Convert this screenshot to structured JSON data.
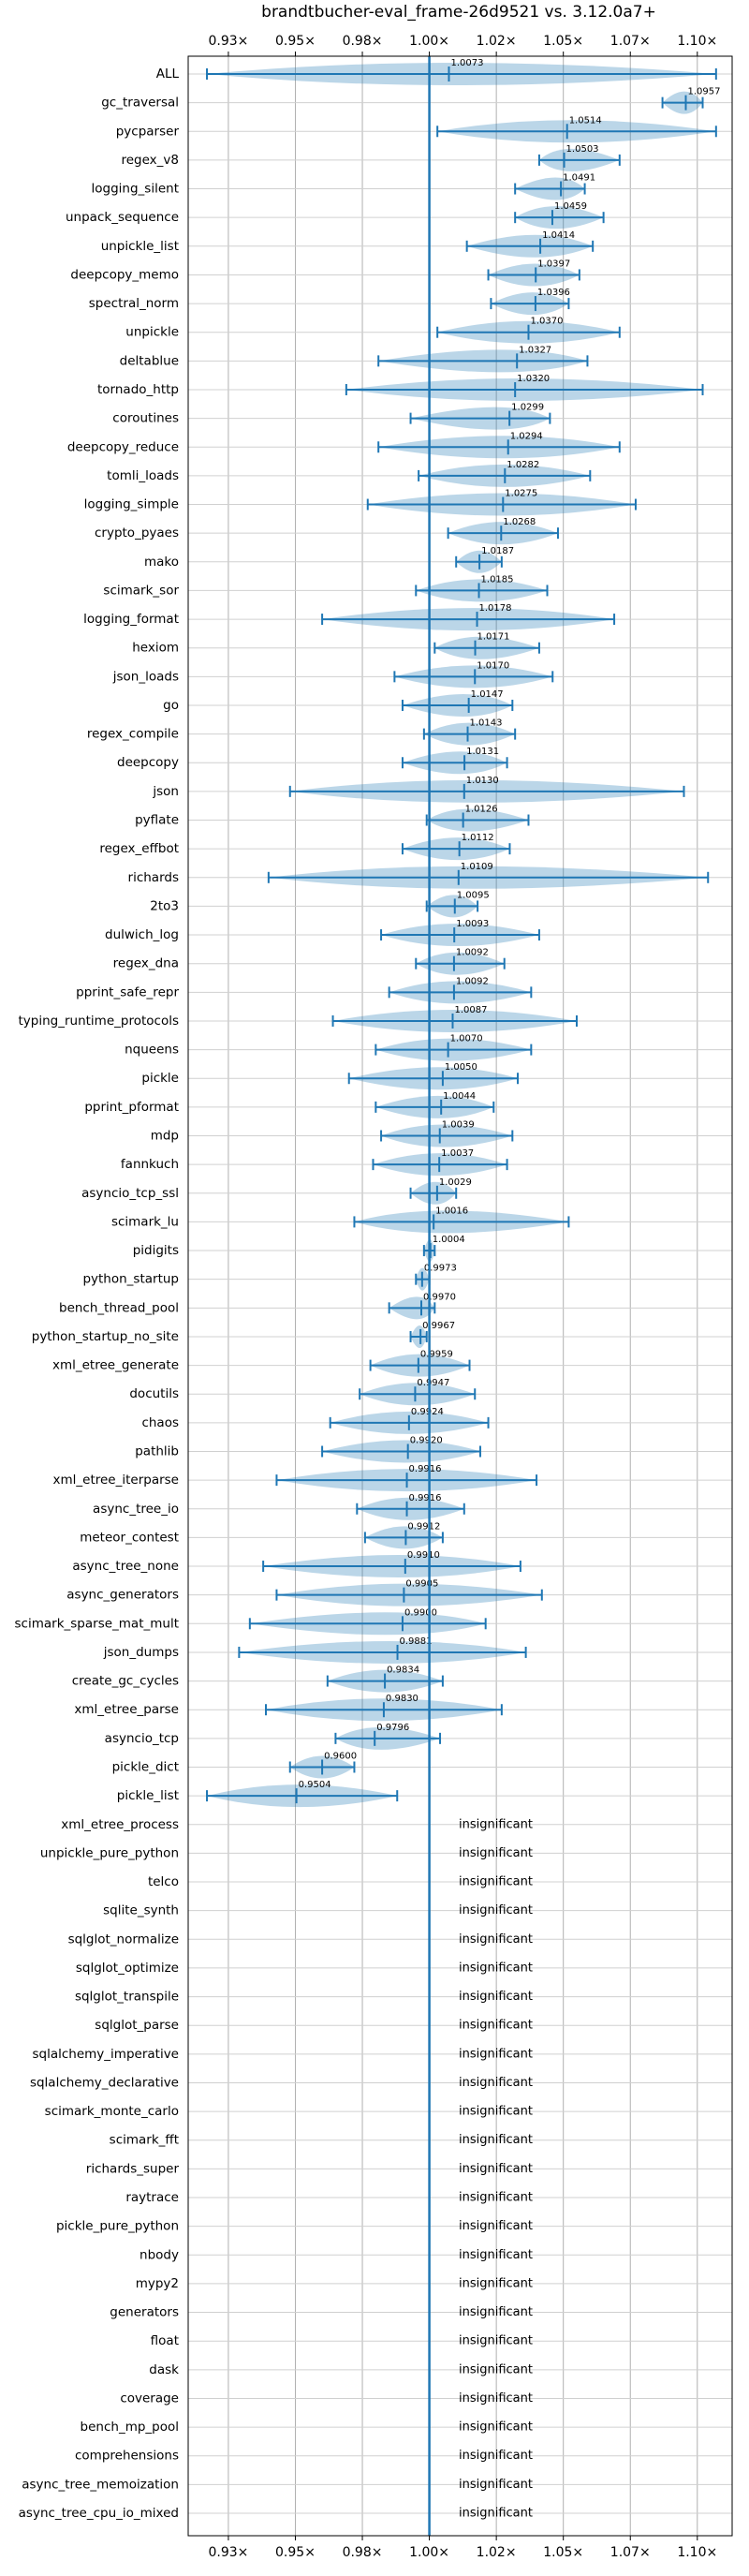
{
  "chart_data": {
    "type": "violin",
    "title": "brandtbucher-eval_frame-26d9521 vs. 3.12.0a7+",
    "xlim": [
      0.91,
      1.113
    ],
    "xticks": [
      {
        "value": 0.925,
        "label": "0.93×"
      },
      {
        "value": 0.95,
        "label": "0.95×"
      },
      {
        "value": 0.975,
        "label": "0.98×"
      },
      {
        "value": 1.0,
        "label": "1.00×"
      },
      {
        "value": 1.025,
        "label": "1.02×"
      },
      {
        "value": 1.05,
        "label": "1.05×"
      },
      {
        "value": 1.075,
        "label": "1.07×"
      },
      {
        "value": 1.1,
        "label": "1.10×"
      }
    ],
    "reference_line": 1,
    "grid": true,
    "color": "#1f77b4",
    "categories": [
      "ALL",
      "gc_traversal",
      "pycparser",
      "regex_v8",
      "logging_silent",
      "unpack_sequence",
      "unpickle_list",
      "deepcopy_memo",
      "spectral_norm",
      "unpickle",
      "deltablue",
      "tornado_http",
      "coroutines",
      "deepcopy_reduce",
      "tomli_loads",
      "logging_simple",
      "crypto_pyaes",
      "mako",
      "scimark_sor",
      "logging_format",
      "hexiom",
      "json_loads",
      "go",
      "regex_compile",
      "deepcopy",
      "json",
      "pyflate",
      "regex_effbot",
      "richards",
      "2to3",
      "dulwich_log",
      "regex_dna",
      "pprint_safe_repr",
      "typing_runtime_protocols",
      "nqueens",
      "pickle",
      "pprint_pformat",
      "mdp",
      "fannkuch",
      "asyncio_tcp_ssl",
      "scimark_lu",
      "pidigits",
      "python_startup",
      "bench_thread_pool",
      "python_startup_no_site",
      "xml_etree_generate",
      "docutils",
      "chaos",
      "pathlib",
      "xml_etree_iterparse",
      "async_tree_io",
      "meteor_contest",
      "async_tree_none",
      "async_generators",
      "scimark_sparse_mat_mult",
      "json_dumps",
      "create_gc_cycles",
      "xml_etree_parse",
      "asyncio_tcp",
      "pickle_dict",
      "pickle_list",
      "xml_etree_process",
      "unpickle_pure_python",
      "telco",
      "sqlite_synth",
      "sqlglot_normalize",
      "sqlglot_optimize",
      "sqlglot_transpile",
      "sqlglot_parse",
      "sqlalchemy_imperative",
      "sqlalchemy_declarative",
      "scimark_monte_carlo",
      "scimark_fft",
      "richards_super",
      "raytrace",
      "pickle_pure_python",
      "nbody",
      "mypy2",
      "generators",
      "float",
      "dask",
      "coverage",
      "bench_mp_pool",
      "comprehensions",
      "async_tree_memoization",
      "async_tree_cpu_io_mixed"
    ],
    "values": [
      1.0073,
      1.0957,
      1.0514,
      1.0503,
      1.0491,
      1.0459,
      1.0414,
      1.0397,
      1.0396,
      1.037,
      1.0327,
      1.032,
      1.0299,
      1.0294,
      1.0282,
      1.0275,
      1.0268,
      1.0187,
      1.0185,
      1.0178,
      1.0171,
      1.017,
      1.0147,
      1.0143,
      1.0131,
      1.013,
      1.0126,
      1.0112,
      1.0109,
      1.0095,
      1.0093,
      1.0092,
      1.0092,
      1.0087,
      1.007,
      1.005,
      1.0044,
      1.0039,
      1.0037,
      1.0029,
      1.0016,
      1.0004,
      0.9973,
      0.997,
      0.9967,
      0.9959,
      0.9947,
      0.9924,
      0.992,
      0.9916,
      0.9916,
      0.9912,
      0.991,
      0.9905,
      0.99,
      0.9881,
      0.9834,
      0.983,
      0.9796,
      0.96,
      0.9504,
      null,
      null,
      null,
      null,
      null,
      null,
      null,
      null,
      null,
      null,
      null,
      null,
      null,
      null,
      null,
      null,
      null,
      null,
      null,
      null,
      null,
      null,
      null,
      null,
      null
    ],
    "value_labels": [
      "1.0073",
      "1.0957",
      "1.0514",
      "1.0503",
      "1.0491",
      "1.0459",
      "1.0414",
      "1.0397",
      "1.0396",
      "1.0370",
      "1.0327",
      "1.0320",
      "1.0299",
      "1.0294",
      "1.0282",
      "1.0275",
      "1.0268",
      "1.0187",
      "1.0185",
      "1.0178",
      "1.0171",
      "1.0170",
      "1.0147",
      "1.0143",
      "1.0131",
      "1.0130",
      "1.0126",
      "1.0112",
      "1.0109",
      "1.0095",
      "1.0093",
      "1.0092",
      "1.0092",
      "1.0087",
      "1.0070",
      "1.0050",
      "1.0044",
      "1.0039",
      "1.0037",
      "1.0029",
      "1.0016",
      "1.0004",
      "0.9973",
      "0.9970",
      "0.9967",
      "0.9959",
      "0.9947",
      "0.9924",
      "0.9920",
      "0.9916",
      "0.9916",
      "0.9912",
      "0.9910",
      "0.9905",
      "0.9900",
      "0.9881",
      "0.9834",
      "0.9830",
      "0.9796",
      "0.9600",
      "0.9504",
      null,
      null,
      null,
      null,
      null,
      null,
      null,
      null,
      null,
      null,
      null,
      null,
      null,
      null,
      null,
      null,
      null,
      null,
      null,
      null,
      null,
      null,
      null,
      null,
      null
    ],
    "mins": [
      0.917,
      1.087,
      1.003,
      1.041,
      1.032,
      1.032,
      1.014,
      1.022,
      1.023,
      1.003,
      0.981,
      0.969,
      0.993,
      0.981,
      0.996,
      0.977,
      1.007,
      1.01,
      0.995,
      0.96,
      1.002,
      0.987,
      0.99,
      0.998,
      0.99,
      0.948,
      0.999,
      0.99,
      0.94,
      0.999,
      0.982,
      0.995,
      0.985,
      0.964,
      0.98,
      0.97,
      0.98,
      0.982,
      0.979,
      0.993,
      0.972,
      0.998,
      0.995,
      0.985,
      0.993,
      0.978,
      0.974,
      0.963,
      0.96,
      0.943,
      0.973,
      0.976,
      0.938,
      0.943,
      0.933,
      0.929,
      0.962,
      0.939,
      0.965,
      0.948,
      0.917,
      null,
      null,
      null,
      null,
      null,
      null,
      null,
      null,
      null,
      null,
      null,
      null,
      null,
      null,
      null,
      null,
      null,
      null,
      null,
      null,
      null,
      null,
      null,
      null,
      null
    ],
    "maxs": [
      1.107,
      1.102,
      1.107,
      1.071,
      1.058,
      1.065,
      1.061,
      1.056,
      1.052,
      1.071,
      1.059,
      1.102,
      1.045,
      1.071,
      1.06,
      1.077,
      1.048,
      1.027,
      1.044,
      1.069,
      1.041,
      1.046,
      1.031,
      1.032,
      1.029,
      1.095,
      1.037,
      1.03,
      1.104,
      1.018,
      1.041,
      1.028,
      1.038,
      1.055,
      1.038,
      1.033,
      1.024,
      1.031,
      1.029,
      1.01,
      1.052,
      1.002,
      1.0,
      1.002,
      0.999,
      1.015,
      1.017,
      1.022,
      1.019,
      1.04,
      1.013,
      1.005,
      1.034,
      1.042,
      1.021,
      1.036,
      1.005,
      1.027,
      1.004,
      0.972,
      0.988,
      null,
      null,
      null,
      null,
      null,
      null,
      null,
      null,
      null,
      null,
      null,
      null,
      null,
      null,
      null,
      null,
      null,
      null,
      null,
      null,
      null,
      null,
      null,
      null,
      null
    ],
    "notes": [
      null,
      null,
      null,
      null,
      null,
      null,
      null,
      null,
      null,
      null,
      null,
      null,
      null,
      null,
      null,
      null,
      null,
      null,
      null,
      null,
      null,
      null,
      null,
      null,
      null,
      null,
      null,
      null,
      null,
      null,
      null,
      null,
      null,
      null,
      null,
      null,
      null,
      null,
      null,
      null,
      null,
      null,
      null,
      null,
      null,
      null,
      null,
      null,
      null,
      null,
      null,
      null,
      null,
      null,
      null,
      null,
      null,
      null,
      null,
      null,
      null,
      "insignificant",
      "insignificant",
      "insignificant",
      "insignificant",
      "insignificant",
      "insignificant",
      "insignificant",
      "insignificant",
      "insignificant",
      "insignificant",
      "insignificant",
      "insignificant",
      "insignificant",
      "insignificant",
      "insignificant",
      "insignificant",
      "insignificant",
      "insignificant",
      "insignificant",
      "insignificant",
      "insignificant",
      "insignificant",
      "insignificant",
      "insignificant",
      "insignificant"
    ]
  }
}
